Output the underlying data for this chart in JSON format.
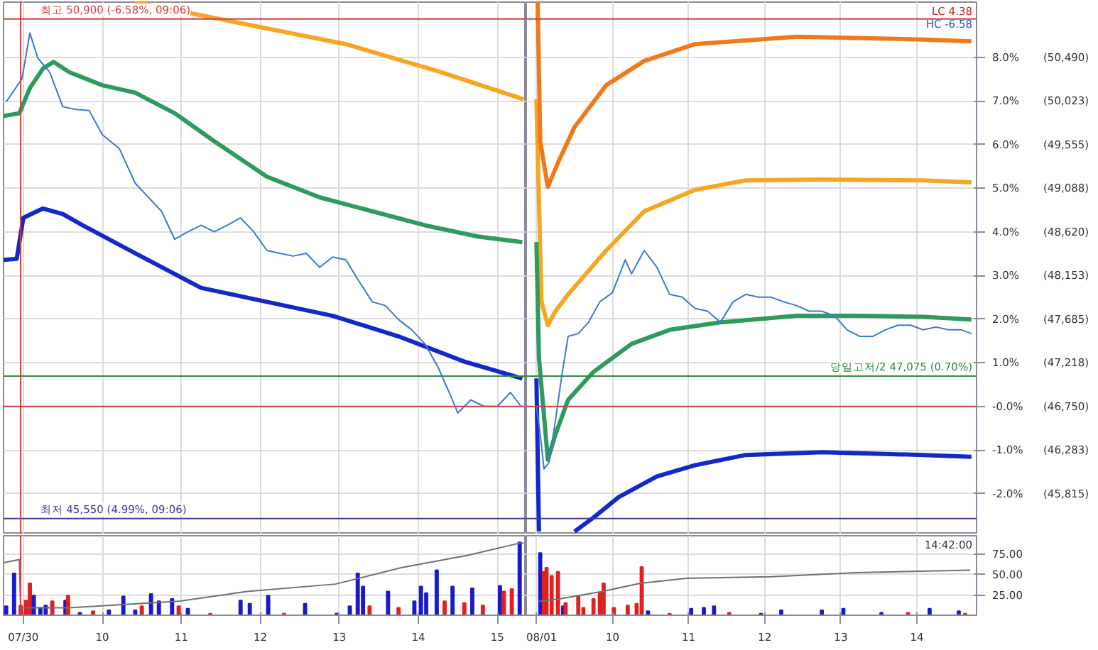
{
  "chart_data": [
    {
      "type": "line",
      "xlim": [
        "--07-30T08:45",
        "--07-30T15:22"
      ],
      "ylim": [
        45380,
        51080
      ],
      "tick_labels": false,
      "grid": true,
      "xticks": [
        {
          "value": "--07-30T09:00",
          "label": "07/30"
        },
        {
          "value": "--07-30T10:00",
          "label": "10"
        },
        {
          "value": "--07-30T11:00",
          "label": "11"
        },
        {
          "value": "--07-30T12:00",
          "label": "12"
        },
        {
          "value": "--07-30T13:00",
          "label": "13"
        },
        {
          "value": "--07-30T14:00",
          "label": "14"
        },
        {
          "value": "--07-30T15:00",
          "label": "15"
        }
      ],
      "yticks": [
        45815,
        46283,
        46750,
        47218,
        47685,
        48153,
        48620,
        49088,
        49555,
        50023,
        50490
      ],
      "ref_lines": [
        {
          "axis": "y",
          "value": 50900,
          "label": "최고 50,900 (-6.58%, 09:06)",
          "color": "#d04040"
        },
        {
          "axis": "y",
          "value": 47075,
          "color": "#2e8b3e"
        },
        {
          "axis": "y",
          "value": 46750,
          "color": "#d04040"
        },
        {
          "axis": "y",
          "value": 45550,
          "label": "최저 45,550 (4.99%, 09:06)",
          "color": "#3a3a9a"
        },
        {
          "axis": "x",
          "value": "--07-30T08:58",
          "color": "#d04040"
        }
      ],
      "series": [
        {
          "color": "#f5a623",
          "x": [
            "--07-30T10:25",
            "--07-30T13:05",
            "--07-30T14:15",
            "--07-30T15:20"
          ],
          "values": [
            51080,
            50630,
            50340,
            50040
          ]
        },
        {
          "color": "#2e9a5e",
          "x": [
            "--07-30T08:45",
            "--07-30T08:57",
            "--07-30T09:05",
            "--07-30T09:15",
            "--07-30T09:23",
            "--07-30T09:35",
            "--07-30T10:00",
            "--07-30T10:25",
            "--07-30T10:55",
            "--07-30T11:25",
            "--07-30T12:05",
            "--07-30T12:45",
            "--07-30T13:25",
            "--07-30T14:05",
            "--07-30T14:45",
            "--07-30T15:19"
          ],
          "values": [
            49860,
            49890,
            50160,
            50370,
            50440,
            50330,
            50190,
            50110,
            49890,
            49590,
            49210,
            48990,
            48840,
            48690,
            48570,
            48510
          ]
        },
        {
          "color": "#1428c8",
          "x": [
            "--07-30T08:45",
            "--07-30T08:55",
            "--07-30T09:00",
            "--07-30T09:15",
            "--07-30T09:30",
            "--07-30T09:45",
            "--07-30T10:25",
            "--07-30T11:15",
            "--07-30T12:05",
            "--07-30T12:55",
            "--07-30T13:45",
            "--07-30T14:35",
            "--07-30T15:19"
          ],
          "values": [
            48320,
            48330,
            48770,
            48870,
            48810,
            48690,
            48390,
            48020,
            47870,
            47720,
            47500,
            47230,
            47050
          ]
        },
        {
          "color": "#3a78d8",
          "x": [
            "--07-30T08:47",
            "--07-30T08:59",
            "--07-30T09:05",
            "--07-30T09:11",
            "--07-30T09:20",
            "--07-30T09:30",
            "--07-30T09:40",
            "--07-30T09:50",
            "--07-30T10:00",
            "--07-30T10:13",
            "--07-30T10:25",
            "--07-30T10:35",
            "--07-30T10:45",
            "--07-30T10:55",
            "--07-30T11:05",
            "--07-30T11:15",
            "--07-30T11:25",
            "--07-30T11:35",
            "--07-30T11:45",
            "--07-30T11:55",
            "--07-30T12:05",
            "--07-30T12:15",
            "--07-30T12:25",
            "--07-30T12:35",
            "--07-30T12:45",
            "--07-30T12:55",
            "--07-30T13:05",
            "--07-30T13:15",
            "--07-30T13:25",
            "--07-30T13:35",
            "--07-30T13:45",
            "--07-30T13:55",
            "--07-30T14:05",
            "--07-30T14:15",
            "--07-30T14:25",
            "--07-30T14:30",
            "--07-30T14:40",
            "--07-30T14:50",
            "--07-30T15:00",
            "--07-30T15:10",
            "--07-30T15:18"
          ],
          "values": [
            50010,
            50260,
            50750,
            50480,
            50330,
            49960,
            49930,
            49920,
            49660,
            49510,
            49140,
            48990,
            48840,
            48540,
            48620,
            48690,
            48620,
            48690,
            48770,
            48620,
            48420,
            48390,
            48360,
            48390,
            48240,
            48350,
            48320,
            48090,
            47870,
            47830,
            47680,
            47570,
            47420,
            47170,
            46850,
            46680,
            46820,
            46750,
            46750,
            46900,
            46750
          ]
        }
      ]
    },
    {
      "type": "line",
      "xlim": [
        "--08-01T08:52",
        "--08-01T14:47"
      ],
      "ylim": [
        45380,
        51080
      ],
      "y2lim": [
        -2.93,
        9.26
      ],
      "tick_labels": "y",
      "grid": true,
      "xticks": [
        {
          "value": "--08-01T09:00",
          "label": "08/01"
        },
        {
          "value": "--08-01T10:00",
          "label": "10"
        },
        {
          "value": "--08-01T11:00",
          "label": "11"
        },
        {
          "value": "--08-01T12:00",
          "label": "12"
        },
        {
          "value": "--08-01T13:00",
          "label": "13"
        },
        {
          "value": "--08-01T14:00",
          "label": "14"
        }
      ],
      "yticks": [
        {
          "value": 45815,
          "label": "(45,815)"
        },
        {
          "value": 46283,
          "label": "(46,283)"
        },
        {
          "value": 46750,
          "label": "(46,750)"
        },
        {
          "value": 47218,
          "label": "(47,218)"
        },
        {
          "value": 47685,
          "label": "(47,685)"
        },
        {
          "value": 48153,
          "label": "(48,153)"
        },
        {
          "value": 48620,
          "label": "(48,620)"
        },
        {
          "value": 49088,
          "label": "(49,088)"
        },
        {
          "value": 49555,
          "label": "(49,555)"
        },
        {
          "value": 50023,
          "label": "(50,023)"
        },
        {
          "value": 50490,
          "label": "(50,490)"
        }
      ],
      "y2ticks": [
        {
          "value": -2,
          "label": "-2.0%"
        },
        {
          "value": -1,
          "label": "-1.0%"
        },
        {
          "value": 0,
          "label": "-0.0%"
        },
        {
          "value": 1,
          "label": "1.0%"
        },
        {
          "value": 2,
          "label": "2.0%"
        },
        {
          "value": 3,
          "label": "3.0%"
        },
        {
          "value": 4,
          "label": "4.0%"
        },
        {
          "value": 5,
          "label": "5.0%"
        },
        {
          "value": 6,
          "label": "6.0%"
        },
        {
          "value": 7,
          "label": "7.0%"
        },
        {
          "value": 8,
          "label": "8.0%"
        }
      ],
      "ref_lines": [
        {
          "axis": "y",
          "value": 50900,
          "color": "#d04040"
        },
        {
          "axis": "y",
          "value": 47075,
          "label": "당일고저/2 47,075 (0.70%)",
          "color": "#2e8b3e"
        },
        {
          "axis": "y",
          "value": 46750,
          "color": "#d04040"
        },
        {
          "axis": "y",
          "value": 45550,
          "color": "#3a3a9a"
        }
      ],
      "annotations": [
        "LC 4.38",
        "HC -6.58"
      ],
      "series": [
        {
          "color": "#f5a623",
          "x": [
            "--08-01T09:00",
            "--08-01T09:04",
            "--08-01T09:09",
            "--08-01T09:15",
            "--08-01T09:25",
            "--08-01T09:55",
            "--08-01T10:25",
            "--08-01T11:05",
            "--08-01T11:45",
            "--08-01T12:45",
            "--08-01T14:05",
            "--08-01T14:43"
          ],
          "values": [
            50040,
            47870,
            47620,
            47770,
            47950,
            48420,
            48840,
            49070,
            49170,
            49180,
            49170,
            49150
          ]
        },
        {
          "color": "#f07a1a",
          "x": [
            "--08-01T09:01",
            "--08-01T09:03",
            "--08-01T09:09",
            "--08-01T09:17",
            "--08-01T09:30",
            "--08-01T09:55",
            "--08-01T10:25",
            "--08-01T11:05",
            "--08-01T12:25",
            "--08-01T14:05",
            "--08-01T14:43"
          ],
          "values": [
            51080,
            49590,
            49100,
            49360,
            49740,
            50190,
            50450,
            50630,
            50710,
            50680,
            50660
          ]
        },
        {
          "color": "#2e9a5e",
          "x": [
            "--08-01T09:00",
            "--08-01T09:02",
            "--08-01T09:09",
            "--08-01T09:15",
            "--08-01T09:25",
            "--08-01T09:45",
            "--08-01T10:15",
            "--08-01T10:45",
            "--08-01T11:25",
            "--08-01T12:25",
            "--08-01T13:15",
            "--08-01T14:05",
            "--08-01T14:43"
          ],
          "values": [
            48510,
            47270,
            46180,
            46450,
            46820,
            47120,
            47420,
            47570,
            47650,
            47720,
            47720,
            47710,
            47680
          ]
        },
        {
          "color": "#1428c8",
          "x": [
            "--08-01T09:00",
            "--08-01T09:02",
            "--08-01T09:16",
            "--08-01T09:30",
            "--08-01T09:45",
            "--08-01T10:05",
            "--08-01T10:35",
            "--08-01T11:05",
            "--08-01T11:45",
            "--08-01T12:45",
            "--08-01T14:05",
            "--08-01T14:43"
          ],
          "values": [
            47050,
            45410,
            null,
            45410,
            45560,
            45780,
            46000,
            46120,
            46230,
            46260,
            46230,
            46210
          ]
        },
        {
          "color": "#3a78d8",
          "x": [
            "--08-01T09:00",
            "--08-01T09:03",
            "--08-01T09:06",
            "--08-01T09:10",
            "--08-01T09:15",
            "--08-01T09:20",
            "--08-01T09:25",
            "--08-01T09:33",
            "--08-01T09:41",
            "--08-01T09:50",
            "--08-01T10:00",
            "--08-01T10:10",
            "--08-01T10:15",
            "--08-01T10:25",
            "--08-01T10:35",
            "--08-01T10:45",
            "--08-01T10:55",
            "--08-01T11:05",
            "--08-01T11:15",
            "--08-01T11:25",
            "--08-01T11:35",
            "--08-01T11:45",
            "--08-01T11:55",
            "--08-01T12:05",
            "--08-01T12:15",
            "--08-01T12:25",
            "--08-01T12:35",
            "--08-01T12:45",
            "--08-01T12:55",
            "--08-01T13:05",
            "--08-01T13:15",
            "--08-01T13:25",
            "--08-01T13:35",
            "--08-01T13:45",
            "--08-01T13:55",
            "--08-01T14:05",
            "--08-01T14:15",
            "--08-01T14:25",
            "--08-01T14:35",
            "--08-01T14:43"
          ],
          "values": [
            46750,
            46450,
            46080,
            46150,
            46600,
            47080,
            47500,
            47530,
            47650,
            47870,
            47970,
            48320,
            48170,
            48420,
            48240,
            47950,
            47920,
            47800,
            47770,
            47650,
            47870,
            47950,
            47920,
            47920,
            47870,
            47830,
            47770,
            47770,
            47720,
            47570,
            47500,
            47500,
            47570,
            47620,
            47620,
            47570,
            47600,
            47570,
            47570,
            47530
          ]
        }
      ]
    },
    {
      "type": "bar",
      "xlim": [
        "--07-30T08:45",
        "--07-30T15:22"
      ],
      "ylim": [
        0,
        97
      ],
      "tick_labels": "x",
      "grid": true,
      "xticks": [
        {
          "value": "--07-30T09:00",
          "label": "07/30"
        },
        {
          "value": "--07-30T10:00",
          "label": "10"
        },
        {
          "value": "--07-30T11:00",
          "label": "11"
        },
        {
          "value": "--07-30T12:00",
          "label": "12"
        },
        {
          "value": "--07-30T13:00",
          "label": "13"
        },
        {
          "value": "--07-30T14:00",
          "label": "14"
        },
        {
          "value": "--07-30T15:00",
          "label": "15"
        }
      ],
      "yticks": [
        25,
        50,
        75
      ],
      "ref_lines": [
        {
          "axis": "x",
          "value": "--07-30T08:58",
          "color": "#d04040"
        }
      ],
      "series": [
        {
          "x": [
            "--07-30T08:47",
            "--07-30T08:53",
            "--07-30T08:58",
            "--07-30T09:02",
            "--07-30T09:05",
            "--07-30T09:08",
            "--07-30T09:13",
            "--07-30T09:17",
            "--07-30T09:22",
            "--07-30T09:32",
            "--07-30T09:34",
            "--07-30T09:43",
            "--07-30T09:53",
            "--07-30T10:05",
            "--07-30T10:16",
            "--07-30T10:25",
            "--07-30T10:30",
            "--07-30T10:37",
            "--07-30T10:43",
            "--07-30T10:53",
            "--07-30T10:58",
            "--07-30T11:05",
            "--07-30T11:22",
            "--07-30T11:45",
            "--07-30T11:52",
            "--07-30T12:06",
            "--07-30T12:18",
            "--07-30T12:34",
            "--07-30T12:58",
            "--07-30T13:08",
            "--07-30T13:14",
            "--07-30T13:18",
            "--07-30T13:23",
            "--07-30T13:37",
            "--07-30T13:45",
            "--07-30T13:57",
            "--07-30T14:02",
            "--07-30T14:06",
            "--07-30T14:14",
            "--07-30T14:20",
            "--07-30T14:26",
            "--07-30T14:35",
            "--07-30T14:41",
            "--07-30T14:49",
            "--07-30T15:02",
            "--07-30T15:05",
            "--07-30T15:11",
            "--07-30T15:17"
          ],
          "values": [
            11,
            51,
            12,
            18,
            39,
            24,
            9,
            12,
            17,
            18,
            24,
            3,
            5,
            6,
            23,
            6,
            11,
            26,
            17,
            20,
            11,
            8,
            2,
            18,
            14,
            24,
            2,
            14,
            2,
            11,
            51,
            35,
            11,
            29,
            9,
            17,
            35,
            27,
            55,
            17,
            35,
            15,
            33,
            12,
            36,
            29,
            32,
            89
          ],
          "colors": [
            "#1a1acc",
            "#1a1acc",
            "#e02020",
            "#e02020",
            "#e02020",
            "#1a1acc",
            "#1a1acc",
            "#1a1acc",
            "#e02020",
            "#1a1acc",
            "#e02020",
            "#1a1acc",
            "#e02020",
            "#1a1acc",
            "#1a1acc",
            "#1a1acc",
            "#e02020",
            "#1a1acc",
            "#1a1acc",
            "#1a1acc",
            "#e02020",
            "#1a1acc",
            "#e02020",
            "#1a1acc",
            "#1a1acc",
            "#1a1acc",
            "#e02020",
            "#1a1acc",
            "#1a1acc",
            "#1a1acc",
            "#1a1acc",
            "#1a1acc",
            "#e02020",
            "#1a1acc",
            "#e02020",
            "#1a1acc",
            "#1a1acc",
            "#1a1acc",
            "#1a1acc",
            "#e02020",
            "#1a1acc",
            "#e02020",
            "#1a1acc",
            "#e02020",
            "#1a1acc",
            "#e02020",
            "#e02020",
            "#1a1acc"
          ]
        },
        {
          "type": "line",
          "color": "#707070",
          "x": [
            "--07-30T08:45",
            "--07-30T08:57",
            "--07-30T08:58",
            "--07-30T09:35",
            "--07-30T10:58",
            "--07-30T11:50",
            "--07-30T12:57",
            "--07-30T13:47",
            "--07-30T14:37",
            "--07-30T15:17",
            "--07-30T15:20"
          ],
          "values": [
            64,
            68,
            9,
            9,
            17,
            29,
            38,
            58,
            73,
            88,
            88
          ]
        }
      ]
    },
    {
      "type": "bar",
      "xlim": [
        "--08-01T08:52",
        "--08-01T14:47"
      ],
      "ylim": [
        0,
        97
      ],
      "grid": true,
      "xticks": [
        {
          "value": "--08-01T09:00",
          "label": "08/01"
        },
        {
          "value": "--08-01T10:00",
          "label": "10"
        },
        {
          "value": "--08-01T11:00",
          "label": "11"
        },
        {
          "value": "--08-01T12:00",
          "label": "12"
        },
        {
          "value": "--08-01T13:00",
          "label": "13"
        },
        {
          "value": "--08-01T14:00",
          "label": "14"
        }
      ],
      "yticks": [
        {
          "value": 25,
          "label": "25.00"
        },
        {
          "value": 50,
          "label": "50.00"
        },
        {
          "value": 75,
          "label": "75.00"
        }
      ],
      "annotations": [
        "14:42:00"
      ],
      "series": [
        {
          "x": [
            "--08-01T09:03",
            "--08-01T09:06",
            "--08-01T09:08",
            "--08-01T09:12",
            "--08-01T09:17",
            "--08-01T09:21",
            "--08-01T09:23",
            "--08-01T09:33",
            "--08-01T09:37",
            "--08-01T09:45",
            "--08-01T09:50",
            "--08-01T09:53",
            "--08-01T10:01",
            "--08-01T10:12",
            "--08-01T10:19",
            "--08-01T10:23",
            "--08-01T10:28",
            "--08-01T10:45",
            "--08-01T11:02",
            "--08-01T11:12",
            "--08-01T11:20",
            "--08-01T11:32",
            "--08-01T11:57",
            "--08-01T12:13",
            "--08-01T12:45",
            "--08-01T13:02",
            "--08-01T13:32",
            "--08-01T13:53",
            "--08-01T14:10",
            "--08-01T14:33",
            "--08-01T14:38"
          ],
          "values": [
            76,
            53,
            58,
            48,
            53,
            11,
            15,
            23,
            9,
            20,
            27,
            39,
            9,
            12,
            14,
            59,
            5,
            2,
            8,
            9,
            11,
            3,
            2,
            6,
            6,
            8,
            3,
            3,
            8,
            5,
            2
          ],
          "colors": [
            "#1a1acc",
            "#e02020",
            "#e02020",
            "#e02020",
            "#e02020",
            "#1a1acc",
            "#e02020",
            "#e02020",
            "#e02020",
            "#e02020",
            "#e02020",
            "#e02020",
            "#e02020",
            "#e02020",
            "#e02020",
            "#e02020",
            "#1a1acc",
            "#e02020",
            "#1a1acc",
            "#1a1acc",
            "#1a1acc",
            "#e02020",
            "#1a1acc",
            "#1a1acc",
            "#1a1acc",
            "#1a1acc",
            "#1a1acc",
            "#e02020",
            "#1a1acc",
            "#1a1acc",
            "#e02020"
          ]
        },
        {
          "type": "line",
          "color": "#707070",
          "x": [
            "--08-01T09:02",
            "--08-01T09:18",
            "--08-01T09:52",
            "--08-01T10:22",
            "--08-01T10:58",
            "--08-01T12:05",
            "--08-01T13:12",
            "--08-01T14:42"
          ],
          "values": [
            17,
            20,
            29,
            39,
            45,
            47,
            52,
            55
          ]
        }
      ]
    }
  ]
}
